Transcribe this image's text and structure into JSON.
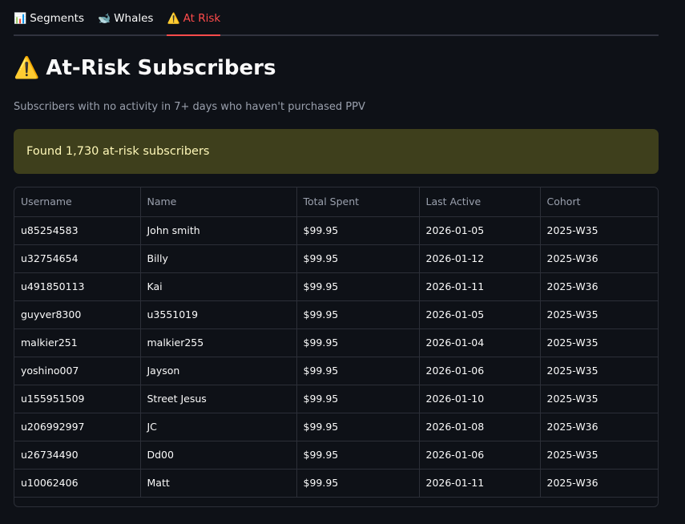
{
  "tabs": [
    {
      "icon": "📊",
      "label": "Segments",
      "active": false
    },
    {
      "icon": "🐋",
      "label": "Whales",
      "active": false
    },
    {
      "icon": "⚠️",
      "label": "At Risk",
      "active": true
    }
  ],
  "page": {
    "title_icon": "⚠️",
    "title": "At-Risk Subscribers",
    "subtitle": "Subscribers with no activity in 7+ days who haven't purchased PPV"
  },
  "alert": {
    "text": "Found 1,730 at-risk subscribers",
    "color": "#3e3f1c"
  },
  "table": {
    "columns": [
      "Username",
      "Name",
      "Total Spent",
      "Last Active",
      "Cohort"
    ],
    "rows": [
      [
        "u85254583",
        "John smith",
        "$99.95",
        "2026-01-05",
        "2025-W35"
      ],
      [
        "u32754654",
        "Billy",
        "$99.95",
        "2026-01-12",
        "2025-W36"
      ],
      [
        "u491850113",
        "Kai",
        "$99.95",
        "2026-01-11",
        "2025-W36"
      ],
      [
        "guyver8300",
        "u3551019",
        "$99.95",
        "2026-01-05",
        "2025-W35"
      ],
      [
        "malkier251",
        "malkier255",
        "$99.95",
        "2026-01-04",
        "2025-W35"
      ],
      [
        "yoshino007",
        "Jayson",
        "$99.95",
        "2026-01-06",
        "2025-W35"
      ],
      [
        "u155951509",
        "Street Jesus",
        "$99.95",
        "2026-01-10",
        "2025-W35"
      ],
      [
        "u206992997",
        "JC",
        "$99.95",
        "2026-01-08",
        "2025-W36"
      ],
      [
        "u26734490",
        "Dd00",
        "$99.95",
        "2026-01-06",
        "2025-W35"
      ],
      [
        "u10062406",
        "Matt",
        "$99.95",
        "2026-01-11",
        "2025-W36"
      ]
    ]
  },
  "colors": {
    "accent": "#ff4b4b",
    "background": "#0e1117",
    "alert_text": "#fff8b8"
  }
}
